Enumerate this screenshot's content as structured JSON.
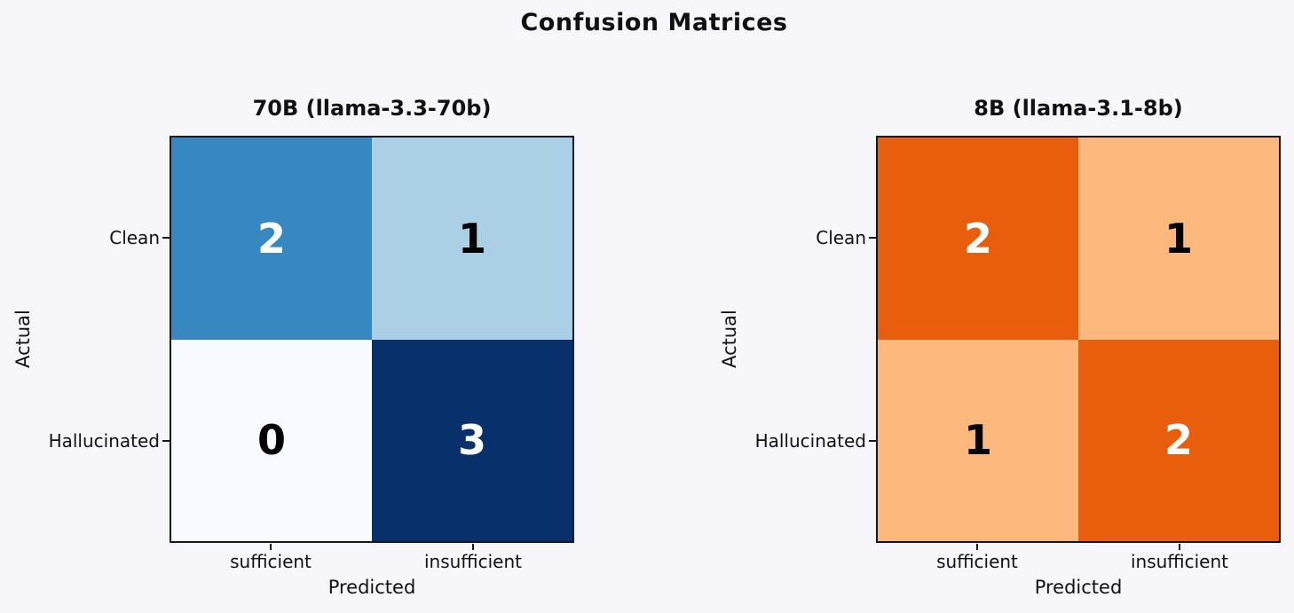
{
  "page": {
    "background": "#f7f7fb",
    "suptitle": "Confusion Matrices"
  },
  "chart_data": [
    {
      "type": "heatmap",
      "title": "70B (llama-3.3-70b)",
      "xlabel": "Predicted",
      "ylabel": "Actual",
      "x_categories": [
        "sufficient",
        "insufficient"
      ],
      "y_categories": [
        "Clean",
        "Hallucinated"
      ],
      "values": [
        [
          2,
          1
        ],
        [
          0,
          3
        ]
      ],
      "colormap": "Blues",
      "value_range": [
        0,
        3
      ],
      "grid": false,
      "legend": false,
      "cell_colors": [
        [
          "#3787c0",
          "#abd0e6"
        ],
        [
          "#f7fbff",
          "#08306b"
        ]
      ],
      "text_colors": [
        [
          "#ffffff",
          "#000000"
        ],
        [
          "#000000",
          "#ffffff"
        ]
      ],
      "border_color": "#17171f"
    },
    {
      "type": "heatmap",
      "title": "8B (llama-3.1-8b)",
      "xlabel": "Predicted",
      "ylabel": "Actual",
      "x_categories": [
        "sufficient",
        "insufficient"
      ],
      "y_categories": [
        "Clean",
        "Hallucinated"
      ],
      "values": [
        [
          2,
          1
        ],
        [
          1,
          2
        ]
      ],
      "colormap": "Oranges",
      "value_range": [
        0,
        3
      ],
      "grid": false,
      "legend": false,
      "cell_colors": [
        [
          "#e95e0d",
          "#fdb97d"
        ],
        [
          "#fdb97d",
          "#e95e0d"
        ]
      ],
      "text_colors": [
        [
          "#ffffff",
          "#000000"
        ],
        [
          "#000000",
          "#ffffff"
        ]
      ],
      "border_color": "#17171f"
    }
  ]
}
